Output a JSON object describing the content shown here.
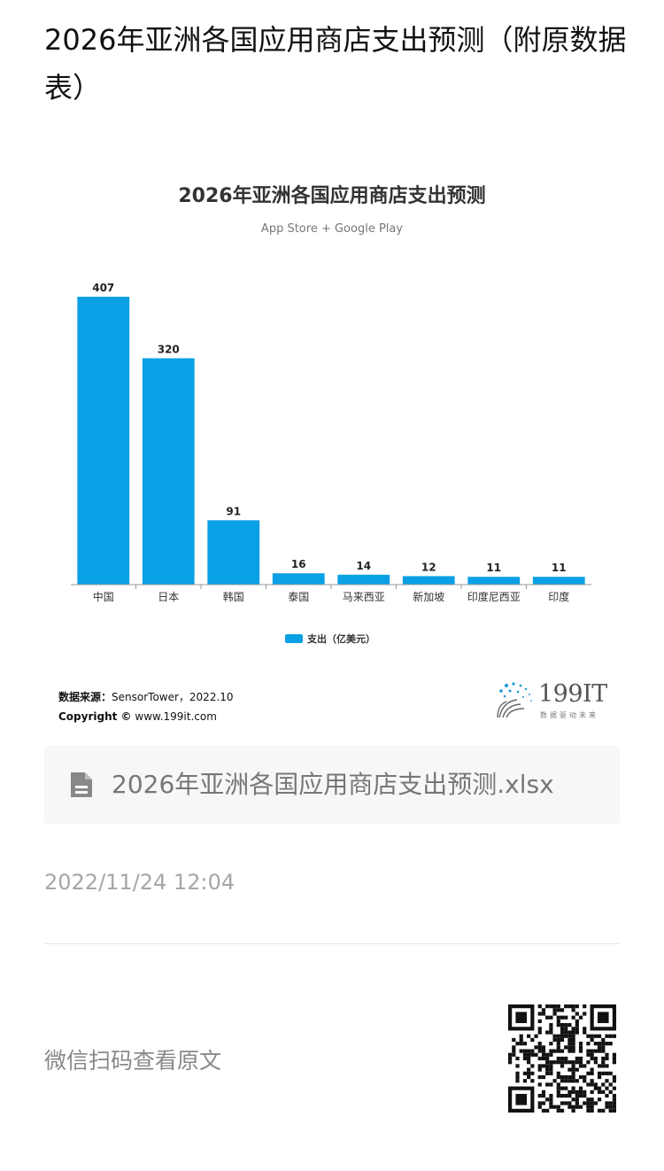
{
  "page": {
    "title": "2026年亚洲各国应用商店支出预测（附原数据表）"
  },
  "chart_data": {
    "type": "bar",
    "title": "2026年亚洲各国应用商店支出预测",
    "subtitle": "App Store + Google Play",
    "categories": [
      "中国",
      "日本",
      "韩国",
      "泰国",
      "马来西亚",
      "新加坡",
      "印度尼西亚",
      "印度"
    ],
    "series": [
      {
        "name": "支出（亿美元）",
        "values": [
          407,
          320,
          91,
          16,
          14,
          12,
          11,
          11
        ],
        "color": "#0aa0e6"
      }
    ],
    "ylim": [
      0,
      407
    ],
    "grid": false,
    "legend": "bottom-center",
    "source_label": "数据来源：",
    "source_value": "SensorTower，2022.10",
    "copyright_label": "Copyright ©",
    "copyright_value": "www.199it.com"
  },
  "logo": {
    "name": "199IT",
    "tagline": "数据驱动未来"
  },
  "attachment": {
    "icon": "document-icon",
    "filename": "2026年亚洲各国应用商店支出预测.xlsx"
  },
  "meta": {
    "timestamp": "2022/11/24 12:04"
  },
  "footer": {
    "qr_hint": "微信扫码查看原文",
    "qr_icon": "qr-code-icon"
  }
}
